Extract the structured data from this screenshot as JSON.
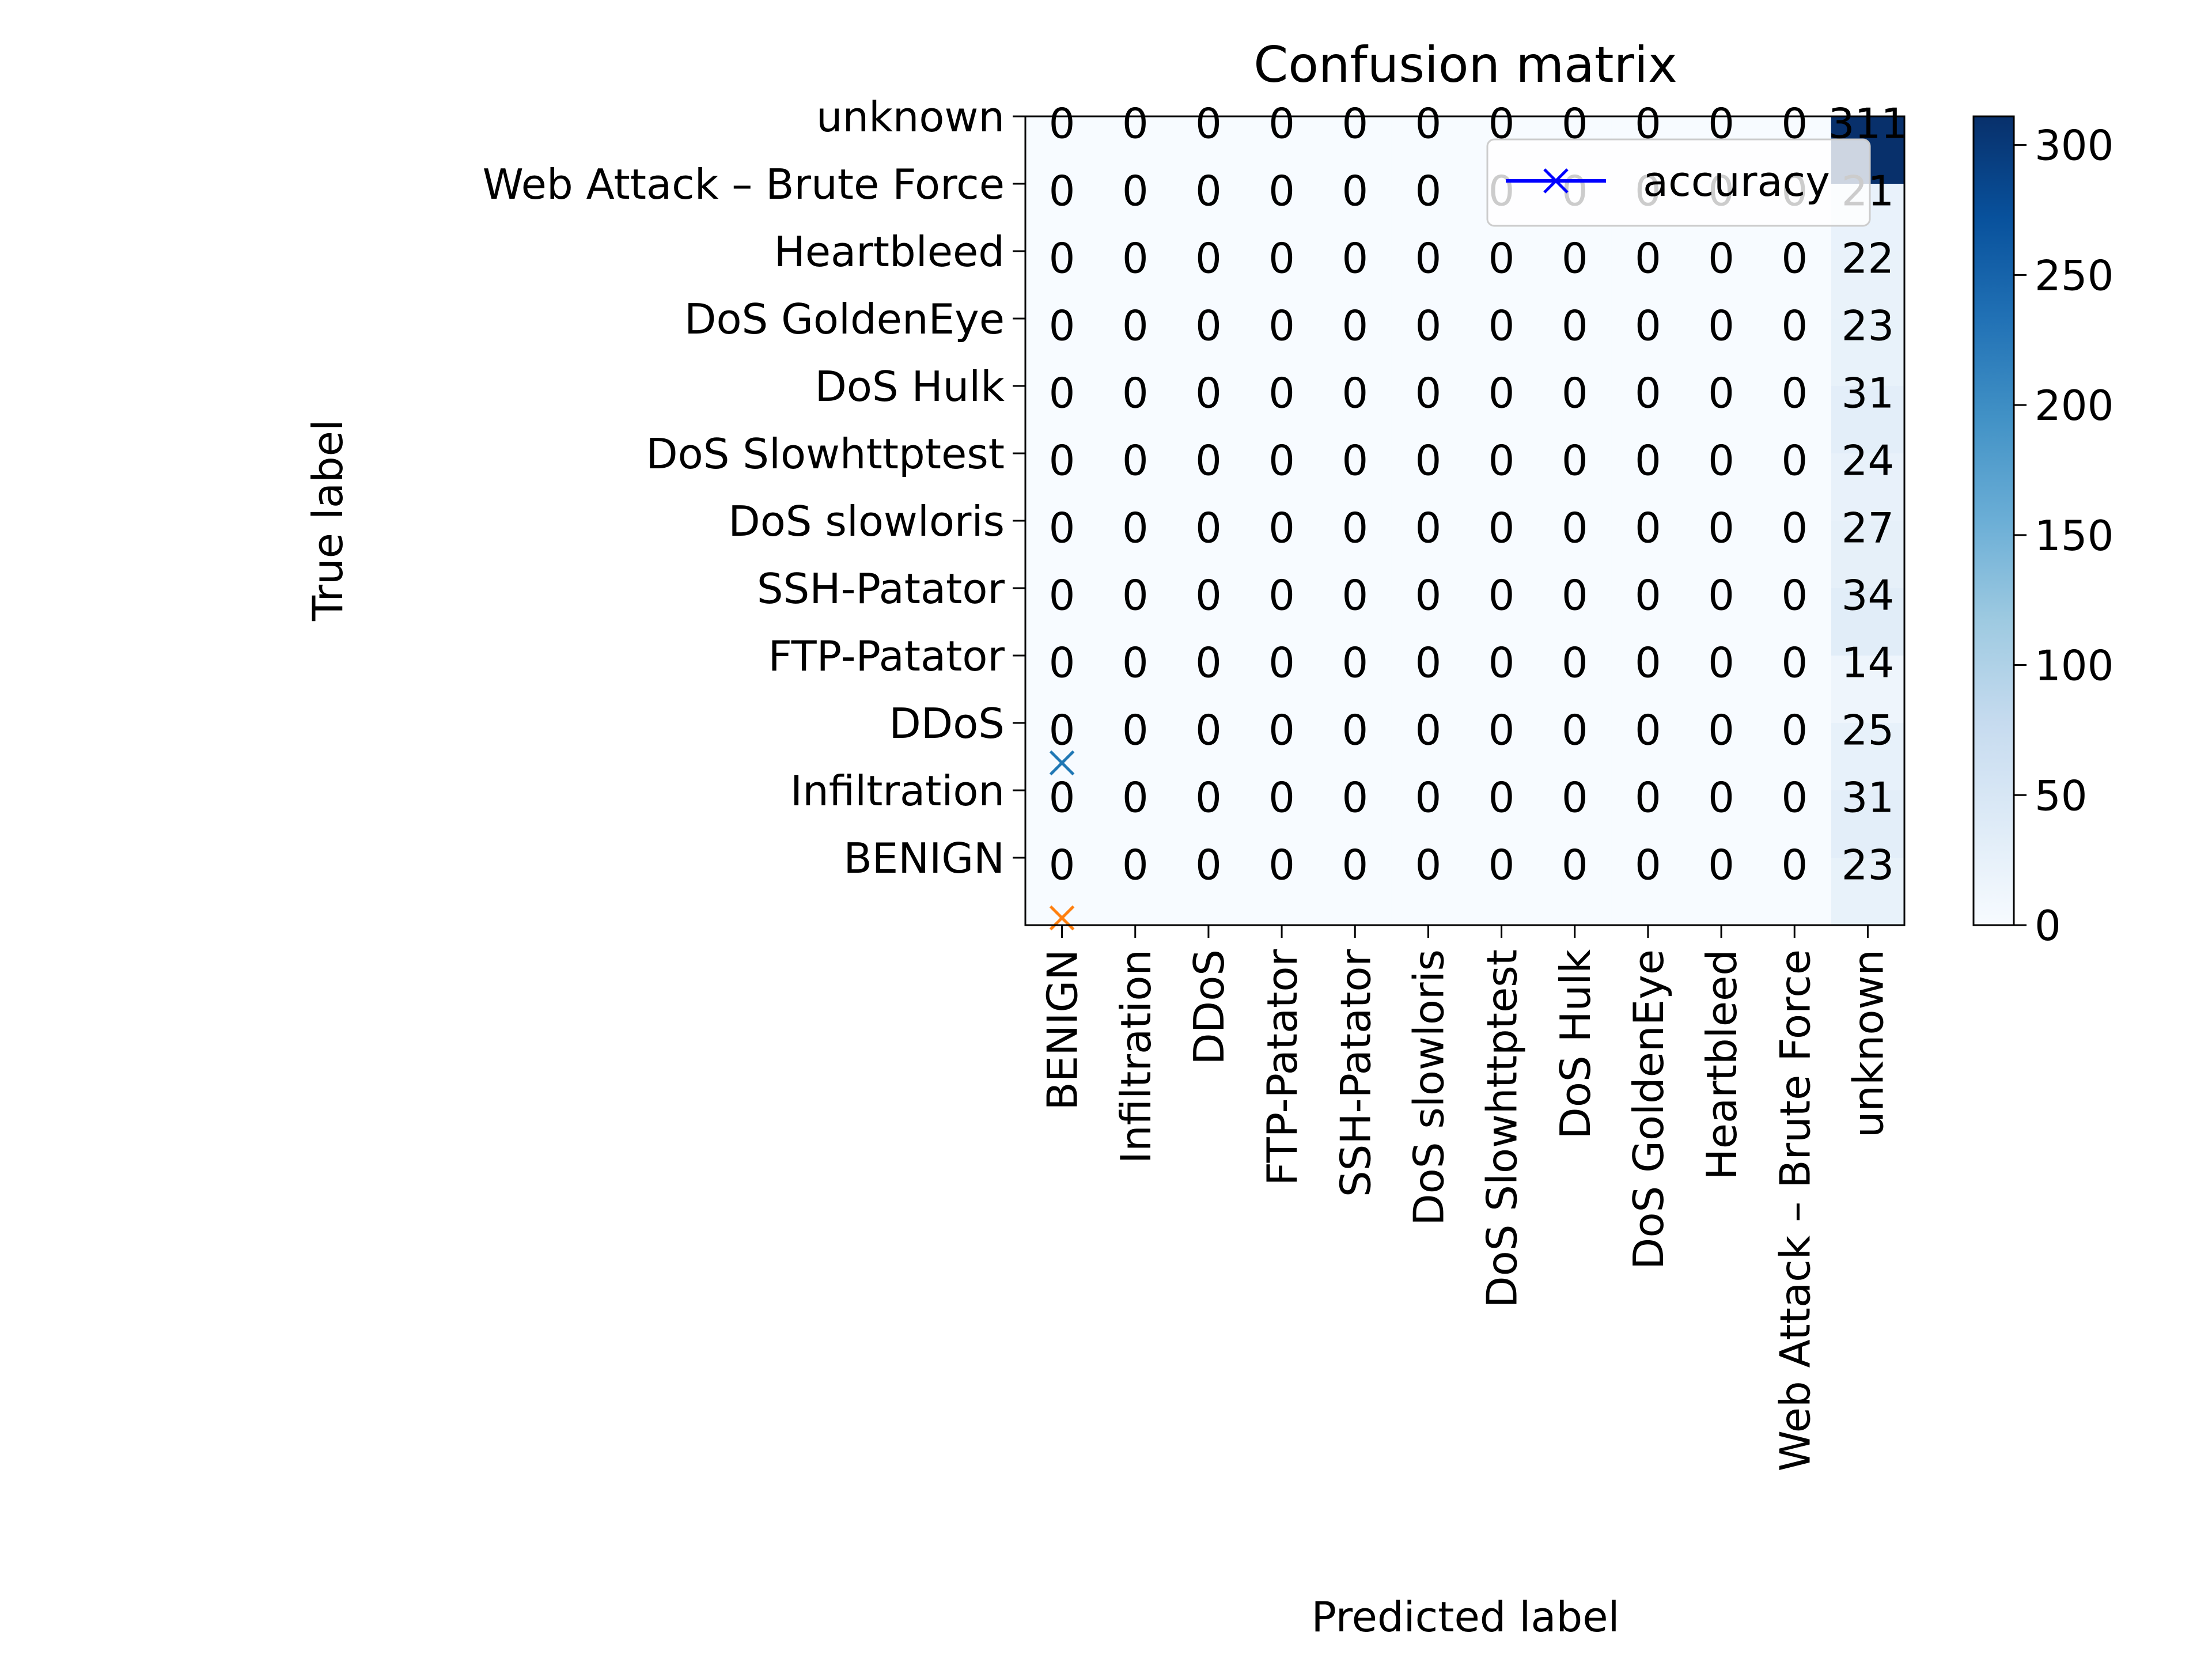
{
  "chart_data": {
    "type": "heatmap",
    "title": "Confusion matrix",
    "xlabel": "Predicted label",
    "ylabel": "True label",
    "colormap": "Blues",
    "x_categories": [
      "BENIGN",
      "Infiltration",
      "DDoS",
      "FTP-Patator",
      "SSH-Patator",
      "DoS slowloris",
      "DoS Slowhttptest",
      "DoS Hulk",
      "DoS GoldenEye",
      "Heartbleed",
      "Web Attack – Brute Force",
      "unknown"
    ],
    "y_categories_top_to_bottom": [
      "unknown",
      "Web Attack – Brute Force",
      "Heartbleed",
      "DoS GoldenEye",
      "DoS Hulk",
      "DoS Slowhttptest",
      "DoS slowloris",
      "SSH-Patator",
      "FTP-Patator",
      "DDoS",
      "Infiltration",
      "BENIGN"
    ],
    "cell_labels_top_to_bottom": [
      [
        "0",
        "0",
        "0",
        "0",
        "0",
        "0",
        "0",
        "0",
        "0",
        "0",
        "0",
        "311"
      ],
      [
        "0",
        "0",
        "0",
        "0",
        "0",
        "0",
        "0",
        "0",
        "0",
        "0",
        "0",
        "21"
      ],
      [
        "0",
        "0",
        "0",
        "0",
        "0",
        "0",
        "0",
        "0",
        "0",
        "0",
        "0",
        "22"
      ],
      [
        "0",
        "0",
        "0",
        "0",
        "0",
        "0",
        "0",
        "0",
        "0",
        "0",
        "0",
        "23"
      ],
      [
        "0",
        "0",
        "0",
        "0",
        "0",
        "0",
        "0",
        "0",
        "0",
        "0",
        "0",
        "31"
      ],
      [
        "0",
        "0",
        "0",
        "0",
        "0",
        "0",
        "0",
        "0",
        "0",
        "0",
        "0",
        "24"
      ],
      [
        "0",
        "0",
        "0",
        "0",
        "0",
        "0",
        "0",
        "0",
        "0",
        "0",
        "0",
        "27"
      ],
      [
        "0",
        "0",
        "0",
        "0",
        "0",
        "0",
        "0",
        "0",
        "0",
        "0",
        "0",
        "34"
      ],
      [
        "0",
        "0",
        "0",
        "0",
        "0",
        "0",
        "0",
        "0",
        "0",
        "0",
        "0",
        "14"
      ],
      [
        "0",
        "0",
        "0",
        "0",
        "0",
        "0",
        "0",
        "0",
        "0",
        "0",
        "0",
        "25"
      ],
      [
        "0",
        "0",
        "0",
        "0",
        "0",
        "0",
        "0",
        "0",
        "0",
        "0",
        "0",
        "31"
      ],
      [
        "0",
        "0",
        "0",
        "0",
        "0",
        "0",
        "0",
        "0",
        "0",
        "0",
        "0",
        "23"
      ]
    ],
    "colorbar": {
      "vmin": 0,
      "vmax": 311,
      "ticks": [
        0,
        50,
        100,
        150,
        200,
        250,
        300
      ]
    },
    "accuracy_markers": [
      {
        "x": 0,
        "y": 0.0,
        "color": "#ff7f0e"
      },
      {
        "x": 0,
        "y": 2.3,
        "color": "#1f77b4"
      }
    ],
    "legend": {
      "placement": "upper right",
      "entries": [
        {
          "label": "accuracy",
          "color": "#0000ff",
          "marker": "x"
        }
      ]
    }
  }
}
